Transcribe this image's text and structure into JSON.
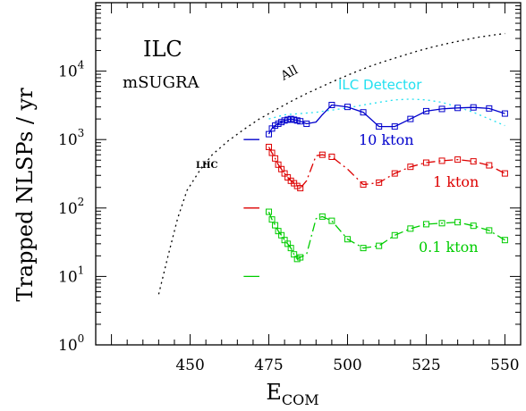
{
  "chart_data": {
    "type": "line",
    "xlabel": "E",
    "xlabel_sub": "COM",
    "ylabel": "Trapped NLSPs / yr",
    "xlim": [
      420,
      555
    ],
    "ylim": [
      1,
      100000
    ],
    "yscale": "log",
    "x_ticks": [
      450,
      475,
      500,
      525,
      550
    ],
    "y_ticks": [
      {
        "base": "10",
        "exp": "0",
        "value": 1
      },
      {
        "base": "10",
        "exp": "1",
        "value": 10
      },
      {
        "base": "10",
        "exp": "2",
        "value": 100
      },
      {
        "base": "10",
        "exp": "3",
        "value": 1000
      },
      {
        "base": "10",
        "exp": "4",
        "value": 10000
      }
    ],
    "annotations": {
      "title1": "ILC",
      "title2": "mSUGRA",
      "lhc": "LHC",
      "all": "All",
      "ilc_detector": "ILC Detector",
      "ten_kton": "10 kton",
      "one_kton": "1 kton",
      "tenth_kton": "0.1 kton"
    },
    "colors": {
      "all": "#000000",
      "ilc_detector": "#22e0f0",
      "ten_kton": "#0000cc",
      "one_kton": "#dd0000",
      "tenth_kton": "#00cc00",
      "lhc_tick_10": "#0000cc",
      "lhc_tick_1": "#dd0000",
      "lhc_tick_01": "#00cc00"
    },
    "lhc_levels": {
      "ten_kton": 1000,
      "one_kton": 100,
      "tenth_kton": 10
    },
    "series": [
      {
        "key": "all",
        "style": "dotted",
        "x": [
          440,
          443,
          446,
          449,
          453,
          457,
          462,
          467,
          472,
          477,
          482,
          487,
          492,
          497,
          502,
          507,
          512,
          517,
          522,
          527,
          532,
          537,
          542,
          547,
          550
        ],
        "y": [
          5.5,
          20,
          70,
          180,
          350,
          600,
          950,
          1400,
          2000,
          2700,
          3600,
          4700,
          6000,
          7600,
          9500,
          11700,
          14000,
          16500,
          19500,
          22500,
          25500,
          28500,
          31500,
          34000,
          35500
        ]
      },
      {
        "key": "ilc_detector",
        "style": "dotted",
        "x": [
          475,
          480,
          485,
          490,
          495,
          500,
          505,
          510,
          515,
          520,
          525,
          530,
          535,
          540,
          545,
          550
        ],
        "y": [
          2000,
          2300,
          2400,
          2500,
          2700,
          2900,
          3200,
          3500,
          3800,
          3900,
          3800,
          3500,
          3000,
          2500,
          2000,
          1600
        ]
      },
      {
        "key": "ten_kton",
        "style": "solid",
        "x": [
          475,
          476,
          477,
          478,
          479,
          480,
          481,
          482,
          483,
          484,
          485,
          487,
          490,
          492,
          495,
          500,
          505,
          510,
          515,
          520,
          525,
          530,
          535,
          540,
          545,
          550
        ],
        "y": [
          1200,
          1450,
          1600,
          1700,
          1800,
          1900,
          1950,
          2000,
          1950,
          1900,
          1850,
          1700,
          1800,
          2300,
          3200,
          3000,
          2500,
          1550,
          1550,
          2000,
          2600,
          2800,
          2900,
          2950,
          2850,
          2400
        ]
      },
      {
        "key": "one_kton",
        "style": "dashed",
        "x": [
          475,
          476,
          477,
          478,
          479,
          480,
          481,
          482,
          483,
          484,
          485,
          487,
          490,
          492,
          495,
          500,
          505,
          510,
          515,
          520,
          525,
          530,
          535,
          540,
          545,
          550
        ],
        "y": [
          780,
          640,
          530,
          430,
          370,
          320,
          280,
          250,
          230,
          210,
          195,
          250,
          580,
          600,
          560,
          370,
          220,
          235,
          320,
          400,
          460,
          490,
          510,
          480,
          420,
          320
        ]
      },
      {
        "key": "tenth_kton",
        "style": "dashed",
        "x": [
          475,
          476,
          477,
          478,
          479,
          480,
          481,
          482,
          483,
          484,
          485,
          487,
          490,
          492,
          495,
          500,
          505,
          510,
          515,
          520,
          525,
          530,
          535,
          540,
          545,
          550
        ],
        "y": [
          88,
          68,
          56,
          46,
          40,
          34,
          30,
          26,
          21,
          18,
          19,
          21,
          70,
          75,
          65,
          35,
          26,
          28,
          40,
          50,
          58,
          60,
          62,
          55,
          47,
          34
        ]
      }
    ],
    "markers": {
      "ten_kton": [
        475,
        476,
        477,
        478,
        479,
        480,
        481,
        482,
        483,
        484,
        485,
        487,
        495,
        500,
        505,
        510,
        515,
        520,
        525,
        530,
        535,
        540,
        545,
        550
      ],
      "one_kton": [
        475,
        476,
        477,
        478,
        479,
        480,
        481,
        482,
        483,
        484,
        485,
        492,
        495,
        505,
        510,
        515,
        520,
        525,
        530,
        535,
        540,
        545,
        550
      ],
      "tenth_kton": [
        475,
        476,
        477,
        478,
        479,
        480,
        481,
        482,
        483,
        484,
        485,
        492,
        495,
        500,
        505,
        510,
        515,
        520,
        525,
        530,
        535,
        540,
        545,
        550
      ]
    }
  }
}
